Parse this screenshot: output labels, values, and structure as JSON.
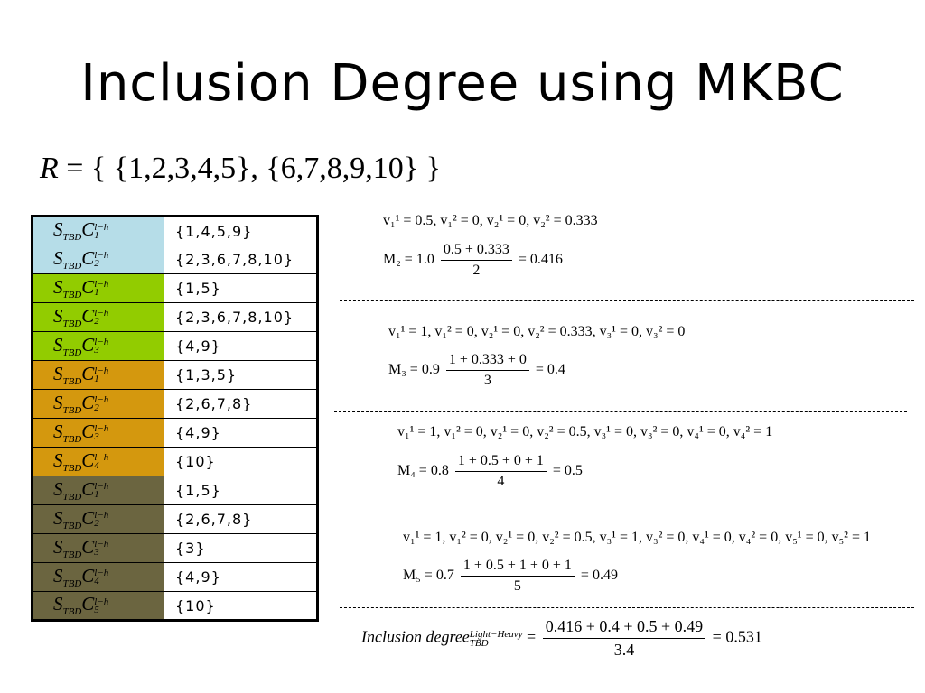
{
  "title": "Inclusion Degree using MKBC",
  "r_set": "{ {1,2,3,4,5}, {6,7,8,9,10} }",
  "table": {
    "rows": [
      {
        "label_index": "1",
        "value": "{1,4,5,9}",
        "color": "#b6dde8"
      },
      {
        "label_index": "2",
        "value": "{2,3,6,7,8,10}",
        "color": "#b6dde8"
      },
      {
        "label_index": "1",
        "value": "{1,5}",
        "color": "#92cc00"
      },
      {
        "label_index": "2",
        "value": "{2,3,6,7,8,10}",
        "color": "#92cc00"
      },
      {
        "label_index": "3",
        "value": "{4,9}",
        "color": "#92cc00"
      },
      {
        "label_index": "1",
        "value": "{1,3,5}",
        "color": "#d4980e"
      },
      {
        "label_index": "2",
        "value": "{2,6,7,8}",
        "color": "#d4980e"
      },
      {
        "label_index": "3",
        "value": "{4,9}",
        "color": "#d4980e"
      },
      {
        "label_index": "4",
        "value": "{10}",
        "color": "#d4980e"
      },
      {
        "label_index": "1",
        "value": "{1,5}",
        "color": "#6b6540"
      },
      {
        "label_index": "2",
        "value": "{2,6,7,8}",
        "color": "#6b6540"
      },
      {
        "label_index": "3",
        "value": "{3}",
        "color": "#6b6540"
      },
      {
        "label_index": "4",
        "value": "{4,9}",
        "color": "#6b6540"
      },
      {
        "label_index": "5",
        "value": "{10}",
        "color": "#6b6540"
      }
    ]
  },
  "m2": {
    "values": "v₁¹ = 0.5, v₁² = 0, v₂¹ = 0, v₂² = 0.333",
    "lhs": "M₂ = 1.0",
    "num": "0.5 + 0.333",
    "den": "2",
    "rhs": "= 0.416"
  },
  "m3": {
    "values": "v₁¹ = 1, v₁² = 0, v₂¹ = 0, v₂² = 0.333, v₃¹ = 0, v₃² = 0",
    "lhs": "M₃ = 0.9",
    "num": "1 + 0.333 + 0",
    "den": "3",
    "rhs": "= 0.4"
  },
  "m4": {
    "values": "v₁¹ = 1, v₁² = 0, v₂¹ = 0, v₂² = 0.5, v₃¹ = 0, v₃² = 0, v₄¹ = 0, v₄² = 1",
    "lhs": "M₄ = 0.8",
    "num": "1 + 0.5 + 0 + 1",
    "den": "4",
    "rhs": "= 0.5"
  },
  "m5": {
    "values": "v₁¹ = 1, v₁² = 0, v₂¹ = 0, v₂² = 0.5, v₃¹ = 1, v₃² = 0, v₄¹ = 0, v₄² = 0, v₅¹ = 0, v₅² = 1",
    "lhs": "M₅ = 0.7",
    "num": "1 + 0.5 + 1 + 0 + 1",
    "den": "5",
    "rhs": "= 0.49"
  },
  "inclusion": {
    "lhs": "Inclusion degree",
    "sup": "Light−Heavy",
    "sub": "TBD",
    "num": "0.416 + 0.4 + 0.5 + 0.49",
    "den": "3.4",
    "rhs": "= 0.531"
  }
}
